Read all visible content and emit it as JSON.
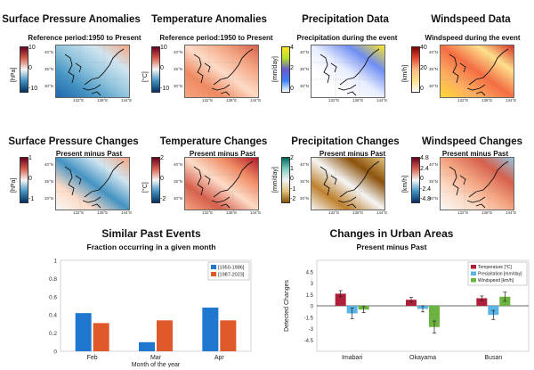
{
  "panels_row1": [
    {
      "title": "Surface Pressure Anomalies",
      "subtitle": "Reference period:1950 to Present",
      "unit": "[hPa]",
      "ticks": [
        "10",
        "0",
        "-10"
      ],
      "palette": "div_rb_blue"
    },
    {
      "title": "Temperature Anomalies",
      "subtitle": "Reference period:1950 to Present",
      "unit": "[°C]",
      "ticks": [
        "10",
        "0",
        "-10"
      ],
      "palette": "div_rb_red"
    },
    {
      "title": "Precipitation Data",
      "subtitle": "Precipitation during the event",
      "unit": "[mm/day]",
      "ticks": [
        "4",
        "2",
        "0"
      ],
      "palette": "seq_precip"
    },
    {
      "title": "Windspeed Data",
      "subtitle": "Windspeed during the event",
      "unit": "[km/h]",
      "ticks": [
        "40",
        "20",
        "0"
      ],
      "palette": "seq_wind"
    }
  ],
  "panels_row2": [
    {
      "title": "Surface Pressure Changes",
      "subtitle": "Present minus Past",
      "unit": "[hPa]",
      "ticks": [
        "1",
        "0",
        "-1"
      ],
      "palette": "div_change_p"
    },
    {
      "title": "Temperature Changes",
      "subtitle": "Present minus Past",
      "unit": "[°C]",
      "ticks": [
        "2",
        "0",
        "-2"
      ],
      "palette": "div_change_t"
    },
    {
      "title": "Precipitation Changes",
      "subtitle": "Present minus Past",
      "unit": "[mm/day]",
      "ticks": [
        "2",
        "1",
        "0",
        "-1",
        "-2"
      ],
      "palette": "div_change_pr"
    },
    {
      "title": "Windspeed Changes",
      "subtitle": "Present minus Past",
      "unit": "[km/h]",
      "ticks": [
        "4.8",
        "2.4",
        "0",
        "-2.4",
        "-4.8"
      ],
      "palette": "div_change_w"
    }
  ],
  "map_labels": {
    "lats": [
      "40°N",
      "35°N",
      "30°N"
    ],
    "lons": [
      "132°E",
      "138°E",
      "144°E"
    ]
  },
  "chart_data": [
    {
      "type": "bar",
      "title": "Similar Past Events",
      "subtitle": "Fraction occurring in a given month",
      "xlabel": "Month of the year",
      "ylabel": "",
      "categories": [
        "Feb",
        "Mar",
        "Apr"
      ],
      "ylim": [
        0,
        1
      ],
      "yticks": [
        "0",
        "0.2",
        "0.4",
        "0.6",
        "0.8",
        "1"
      ],
      "legend_position": "top-right",
      "series": [
        {
          "name": "[1950-1986]",
          "color": "#1f77d0",
          "values": [
            0.42,
            0.1,
            0.48
          ]
        },
        {
          "name": "[1987-2023]",
          "color": "#e0592a",
          "values": [
            0.31,
            0.34,
            0.34
          ]
        }
      ]
    },
    {
      "type": "bar",
      "title": "Changes in Urban Areas",
      "subtitle": "Present minus Past",
      "xlabel": "",
      "ylabel": "Detected Changes",
      "categories": [
        "Imabari",
        "Okayama",
        "Busan"
      ],
      "ylim": [
        -6,
        6
      ],
      "yticks": [
        "4.5",
        "3",
        "1.5",
        "0",
        "-1.5",
        "-3",
        "-4.5"
      ],
      "legend_position": "top-right",
      "series": [
        {
          "name": "Temperature [°C]",
          "color": "#b01f3a",
          "values": [
            1.6,
            0.8,
            1.0
          ],
          "err": [
            0.4,
            0.3,
            0.3
          ]
        },
        {
          "name": "Precipitation [mm/day]",
          "color": "#5ab4e8",
          "values": [
            -1.0,
            -0.4,
            -1.2
          ],
          "err": [
            0.7,
            0.4,
            0.6
          ]
        },
        {
          "name": "Windspeed [km/h]",
          "color": "#6cb33f",
          "values": [
            -0.5,
            -2.8,
            1.2
          ],
          "err": [
            0.4,
            0.8,
            0.6
          ]
        }
      ]
    }
  ]
}
